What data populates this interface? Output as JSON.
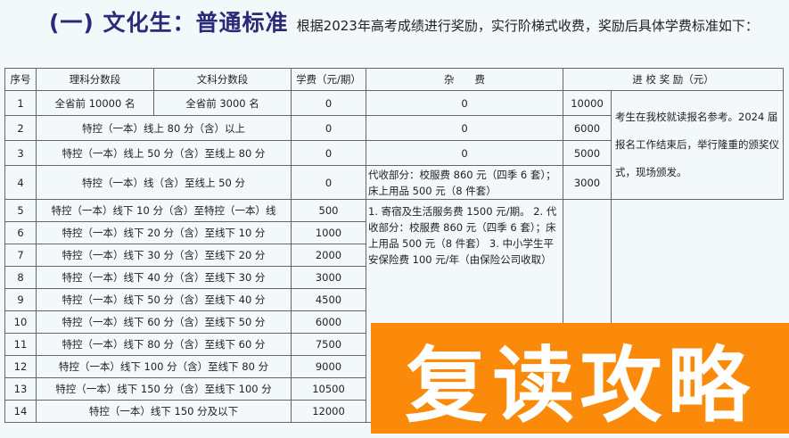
{
  "title": {
    "heading": "(一) 文化生：普通标准",
    "description": "根据2023年高考成绩进行奖励，实行阶梯式收费，奖励后具体学费标准如下："
  },
  "table": {
    "headers": [
      "序号",
      "理科分数段",
      "文科分数段",
      "学费（元/期）",
      "杂　　费",
      "进 校 奖 励（元）"
    ],
    "row1": {
      "no": "1",
      "science": "全省前 10000 名",
      "arts": "全省前 3000 名",
      "tuition": "0",
      "fee": "0",
      "reward": "10000"
    },
    "rows_top": [
      {
        "no": "2",
        "range": "特控（一本）线上 80 分（含）以上",
        "tuition": "0",
        "fee": "0",
        "reward": "6000"
      },
      {
        "no": "3",
        "range": "特控（一本）线上 50 分（含）至线上 80 分",
        "tuition": "0",
        "fee": "0",
        "reward": "5000"
      },
      {
        "no": "4",
        "range": "特控（一本）线（含）至线上 50 分",
        "tuition": "0",
        "fee": "代收部分：校服费 860 元（四季 6 套）；床上用品 500 元（8 件套）",
        "reward": "3000"
      }
    ],
    "rows_bottom": [
      {
        "no": "5",
        "range": "特控（一本）线下 10 分（含）至特控（一本）线",
        "tuition": "500"
      },
      {
        "no": "6",
        "range": "特控（一本）线下 20 分（含）至线下 10 分",
        "tuition": "1000"
      },
      {
        "no": "7",
        "range": "特控（一本）线下 30 分（含）至线下 20 分",
        "tuition": "2000"
      },
      {
        "no": "8",
        "range": "特控（一本）线下 40 分（含）至线下 30 分",
        "tuition": "3000"
      },
      {
        "no": "9",
        "range": "特控（一本）线下 50 分（含）至线下 40 分",
        "tuition": "4500"
      },
      {
        "no": "10",
        "range": "特控（一本）线下 60 分（含）至线下 50 分",
        "tuition": "6000"
      },
      {
        "no": "11",
        "range": "特控（一本）线下 80 分（含）至线下 60 分",
        "tuition": "7500"
      },
      {
        "no": "12",
        "range": "特控（一本）线下 100 分（含）至线下 80 分",
        "tuition": "9000"
      },
      {
        "no": "13",
        "range": "特控（一本）线下 150 分（含）至线下 100 分",
        "tuition": "10500"
      },
      {
        "no": "14",
        "range": "特控（一本）线下 150 分及以下",
        "tuition": "12000"
      }
    ],
    "fee_merged": "1. 寄宿及生活服务费 1500 元/期。 2. 代收部分：校服费 860 元（四季 6 套）；床上用品 500 元（8 件套） 3. 中小学生平安保险费 100 元/年（由保险公司收取）",
    "award_note": "考生在我校就读报名参考。2024 届报名工作结束后，举行隆重的颁奖仪式，现场颁发。"
  },
  "banner": {
    "text": "复读攻略",
    "color": "#fb8a0b"
  }
}
